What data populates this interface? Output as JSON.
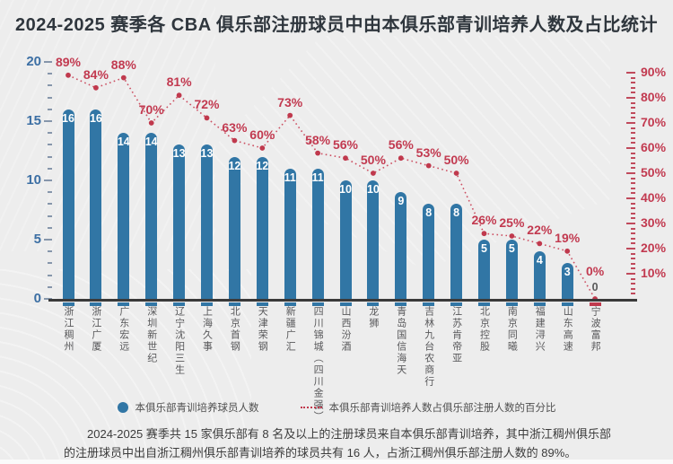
{
  "title": "2024-2025 赛季各 CBA 俱乐部注册球员中由本俱乐部青训培养人数及占比统计",
  "legend": {
    "bar_label": "本俱乐部青训培养球员人数",
    "line_label": "本俱乐部青训培养人数占俱乐部注册人数的百分比"
  },
  "footer": {
    "note": "2024-2025 赛季共 15 家俱乐部有 8 名及以上的注册球员来自本俱乐部青训培养，其中浙江稠州俱乐部的注册球员中出自浙江稠州俱乐部青训培养的球员共有 16 人，占浙江稠州俱乐部注册人数的 89%。"
  },
  "colors": {
    "bar": "#3176a5",
    "line": "#cc4f62",
    "dot": "#c0394d",
    "percent_label": "#c23a50",
    "left_axis_label": "#3c6fa4",
    "x_label": "#58585a",
    "baseline": "#3a3a3a",
    "background": "#ededed"
  },
  "chart_data": {
    "type": "bar",
    "title": "2024-2025 赛季各 CBA 俱乐部注册球员中由本俱乐部青训培养人数及占比统计",
    "categories": [
      "浙江稠州",
      "浙江广厦",
      "广东宏远",
      "深圳新世纪",
      "辽宁沈阳三生",
      "上海久事",
      "北京首钢",
      "天津荣钢",
      "新疆广汇",
      "四川锦城（四川金强）",
      "山西汾酒",
      "龙狮",
      "青岛国信海天",
      "吉林九台农商行",
      "江苏肯帝亚",
      "北京控股",
      "南京同曦",
      "福建浔兴",
      "山东高速",
      "宁波富邦"
    ],
    "series": [
      {
        "name": "本俱乐部青训培养球员人数",
        "render": "bar",
        "axis": "left",
        "values": [
          16,
          16,
          14,
          14,
          13,
          13,
          12,
          12,
          11,
          11,
          10,
          10,
          9,
          8,
          8,
          5,
          5,
          4,
          3,
          0
        ]
      },
      {
        "name": "本俱乐部青训培养人数占俱乐部注册人数的百分比",
        "render": "line",
        "axis": "right",
        "unit": "%",
        "values": [
          89,
          84,
          88,
          70,
          81,
          72,
          63,
          60,
          73,
          58,
          56,
          50,
          56,
          53,
          50,
          26,
          25,
          22,
          19,
          0
        ]
      }
    ],
    "left_axis": {
      "min": 0,
      "max": 20,
      "major_step": 5,
      "minor_step": 1,
      "labels": [
        "0",
        "5",
        "10",
        "15",
        "20"
      ]
    },
    "right_axis": {
      "min": 0,
      "max": 90,
      "major_step": 10,
      "minor_step": 2,
      "suffix": "%",
      "labels": [
        "10%",
        "20%",
        "30%",
        "40%",
        "50%",
        "60%",
        "70%",
        "80%",
        "90%"
      ]
    },
    "grid": false,
    "legend_position": "bottom"
  }
}
